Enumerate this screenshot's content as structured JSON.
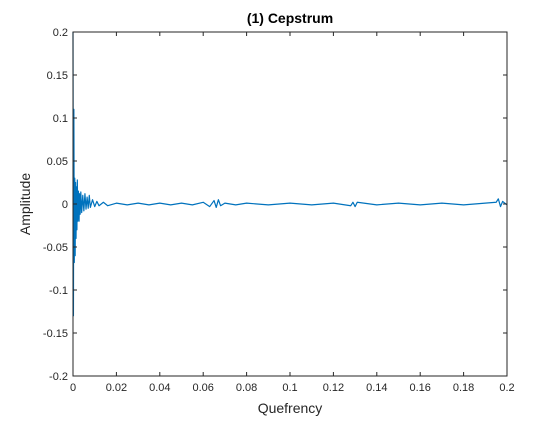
{
  "chart_data": {
    "type": "line",
    "title": "(1) Cepstrum",
    "xlabel": "Quefrency",
    "ylabel": "Amplitude",
    "xlim": [
      0,
      0.2
    ],
    "ylim": [
      -0.2,
      0.2
    ],
    "xticks": [
      "0",
      "0.02",
      "0.04",
      "0.06",
      "0.08",
      "0.1",
      "0.12",
      "0.14",
      "0.16",
      "0.18",
      "0.2"
    ],
    "yticks": [
      "-0.2",
      "-0.15",
      "-0.1",
      "-0.05",
      "0",
      "0.05",
      "0.1",
      "0.15",
      "0.2"
    ],
    "grid": false,
    "line_color": "#0072BD",
    "series": [
      {
        "x": [
          0,
          0.0002,
          0.0004,
          0.0006,
          0.0008,
          0.001,
          0.0012,
          0.0014,
          0.0016,
          0.0018,
          0.002,
          0.0022,
          0.0025,
          0.0028,
          0.003,
          0.0033,
          0.0036,
          0.004,
          0.0045,
          0.005,
          0.0055,
          0.006,
          0.0065,
          0.007,
          0.0075,
          0.008,
          0.009,
          0.01,
          0.011,
          0.012,
          0.014,
          0.016,
          0.02,
          0.025,
          0.03,
          0.035,
          0.04,
          0.045,
          0.05,
          0.055,
          0.06,
          0.063,
          0.065,
          0.066,
          0.067,
          0.068,
          0.07,
          0.075,
          0.08,
          0.09,
          0.1,
          0.11,
          0.12,
          0.128,
          0.129,
          0.13,
          0.131,
          0.14,
          0.15,
          0.16,
          0.17,
          0.18,
          0.19,
          0.195,
          0.196,
          0.197,
          0.198,
          0.2
        ],
        "y": [
          0.2,
          -0.13,
          0.11,
          -0.068,
          0.03,
          -0.06,
          0.025,
          -0.04,
          0.02,
          -0.03,
          0.028,
          -0.02,
          0.015,
          -0.02,
          0.012,
          -0.012,
          0.014,
          -0.01,
          0.01,
          -0.008,
          0.012,
          -0.006,
          0.008,
          -0.005,
          0.01,
          -0.004,
          0.005,
          -0.003,
          0.003,
          -0.002,
          0.002,
          -0.002,
          0.001,
          -0.001,
          0.001,
          -0.001,
          0.001,
          -0.001,
          0.001,
          -0.001,
          0.002,
          -0.003,
          0.004,
          -0.004,
          0.005,
          -0.002,
          0.001,
          -0.001,
          0.001,
          -0.001,
          0.001,
          -0.001,
          0.001,
          -0.002,
          0.002,
          -0.003,
          0.002,
          -0.001,
          0.001,
          -0.001,
          0.001,
          -0.001,
          0.001,
          0.002,
          0.006,
          -0.003,
          0.003,
          -0.001
        ]
      }
    ]
  }
}
